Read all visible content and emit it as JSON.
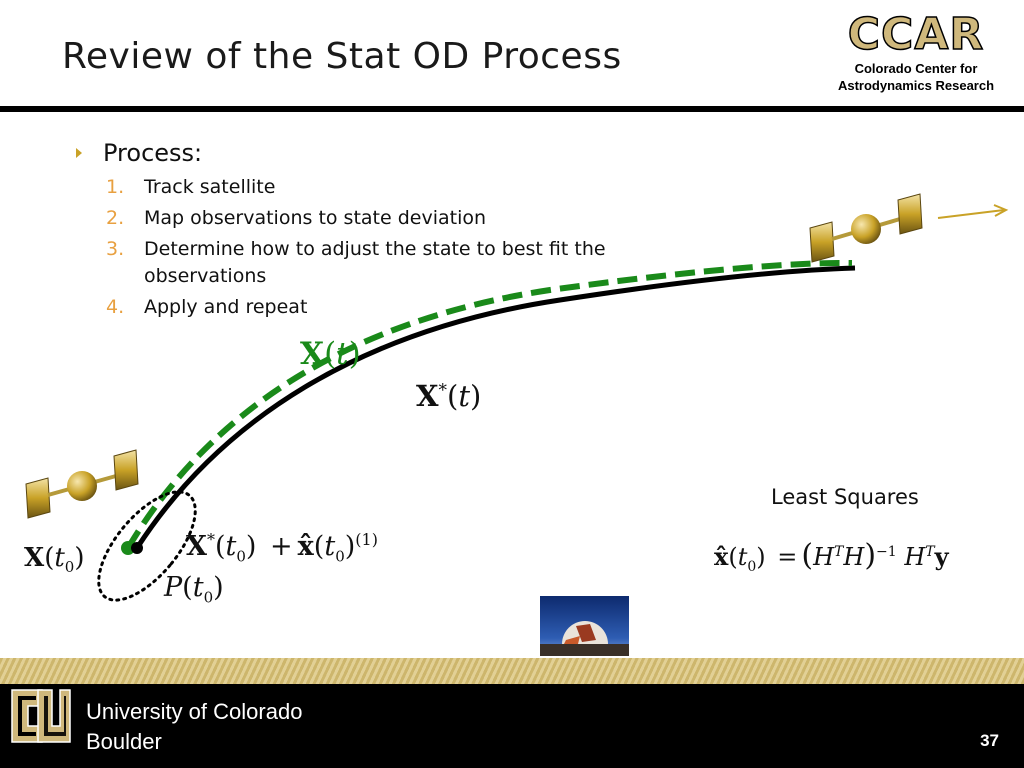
{
  "slide": {
    "title": "Review of the Stat OD Process",
    "page_number": "37"
  },
  "logo": {
    "name": "CCAR",
    "subtitle_line1": "Colorado Center for",
    "subtitle_line2": "Astrodynamics Research"
  },
  "content": {
    "heading": "Process:",
    "steps": [
      {
        "num": "1.",
        "text": "Track satellite"
      },
      {
        "num": "2.",
        "text": "Map observations to state deviation"
      },
      {
        "num": "3.",
        "text": "Determine how to adjust the state to best fit the observations"
      },
      {
        "num": "4.",
        "text": "Apply and repeat"
      }
    ]
  },
  "diagram": {
    "labels": {
      "X": "X",
      "t": "t",
      "star": "*",
      "zero": "0",
      "P": "P",
      "plus": "+",
      "x_hat": "x̂",
      "iter": "(1)",
      "lparen": "(",
      "rparen": ")"
    },
    "least_squares_label": "Least Squares",
    "equation": {
      "lhs_hat": "x̂",
      "equals": "=",
      "H": "H",
      "T": "T",
      "inv": "−1",
      "y": "y"
    },
    "colors": {
      "true_orbit": "#1a8a1a",
      "reference_orbit": "#000000",
      "satellite_gold": "#C9A227"
    }
  },
  "footer": {
    "university_line1": "University of Colorado",
    "university_line2": "Boulder"
  }
}
